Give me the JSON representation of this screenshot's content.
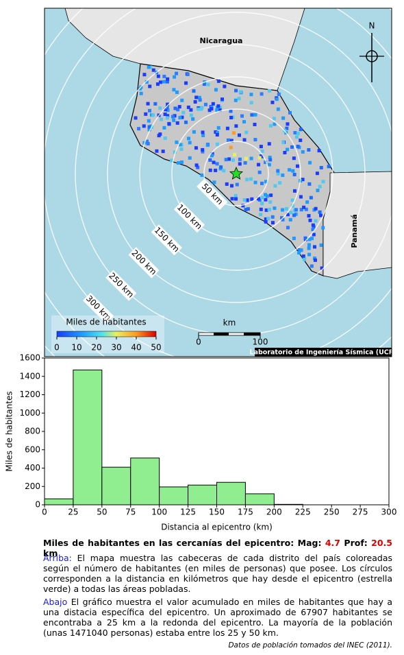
{
  "map": {
    "labels": {
      "nicaragua": "Nicaragua",
      "panama": "Panamá",
      "north": "N"
    },
    "rings": [
      "50 km",
      "100 km",
      "150 km",
      "200 km",
      "250 km",
      "300 km"
    ],
    "colorbar": {
      "title": "Miles de habitantes",
      "ticks": [
        0,
        10,
        20,
        30,
        40,
        50
      ],
      "lim": [
        0,
        50
      ]
    },
    "scalebar": {
      "unit": "km",
      "ticks": [
        0,
        100
      ]
    },
    "credit": "Laboratorio de Ingeniería Sísmica (UCR)"
  },
  "chart_data": {
    "type": "histogram",
    "bins": [
      0,
      25,
      50,
      75,
      100,
      125,
      150,
      175,
      200,
      225
    ],
    "counts": [
      65,
      1470,
      410,
      510,
      195,
      215,
      245,
      120,
      5
    ],
    "color": "#90ee90",
    "xlim": [
      0,
      300
    ],
    "xticks": [
      0,
      25,
      50,
      75,
      100,
      125,
      150,
      175,
      200,
      225,
      250,
      275,
      300
    ],
    "ylim": [
      0,
      1600
    ],
    "yticks": [
      0,
      200,
      400,
      600,
      800,
      1000,
      1200,
      1400,
      1600
    ],
    "x_label": "Distancia al epicentro (km)",
    "y_label": "Miles de habitantes"
  },
  "caption": {
    "title": "Miles de habitantes en las cercanías del epicentro: Mag:",
    "mag": "4.7",
    "depth_label": "Prof:",
    "depth": "20.5",
    "depth_unit": "km",
    "arriba_label": "Arriba:",
    "arriba_text": "El mapa muestra las cabeceras de cada distrito del país coloreadas según el número de habitantes (en miles de personas) que posee.  Los círculos corresponden a la distancia en kilómetros que hay desde el epicentro (estrella verde) a todas las áreas pobladas.",
    "abajo_label": "Abajo",
    "abajo_text": "El gráfico muestra el valor acumulado en miles de habitantes que hay a una distacia específica del epicentro.  Un aproximado de 67907 habitantes se encontraba a 25 km a la redonda del epicentro.  La mayoría de la población (unas 1471040 personas) estaba entre los 25 y 50 km.",
    "source": "Datos de población tomados del INEC (2011)."
  }
}
